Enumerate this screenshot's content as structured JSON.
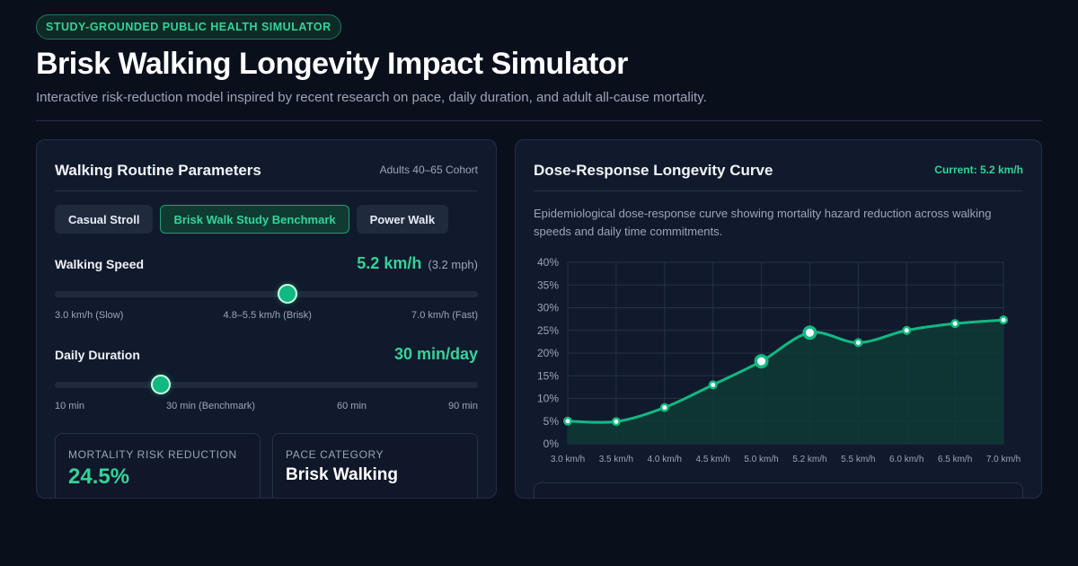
{
  "header": {
    "badge": "STUDY-GROUNDED PUBLIC HEALTH SIMULATOR",
    "title": "Brisk Walking Longevity Impact Simulator",
    "subtitle": "Interactive risk-reduction model inspired by recent research on pace, daily duration, and adult all-cause mortality."
  },
  "params_panel": {
    "title": "Walking Routine Parameters",
    "cohort": "Adults 40–65 Cohort",
    "presets": [
      {
        "label": "Casual Stroll",
        "active": false
      },
      {
        "label": "Brisk Walk Study Benchmark",
        "active": true
      },
      {
        "label": "Power Walk",
        "active": false
      }
    ],
    "speed": {
      "label": "Walking Speed",
      "value": "5.2 km/h",
      "value_sub": "(3.2 mph)",
      "min": 3.0,
      "max": 7.0,
      "current": 5.2,
      "ticks": [
        "3.0 km/h (Slow)",
        "4.8–5.5 km/h (Brisk)",
        "7.0 km/h (Fast)"
      ]
    },
    "duration": {
      "label": "Daily Duration",
      "value": "30 min/day",
      "min": 0,
      "max": 120,
      "current": 30,
      "ticks": [
        "10 min",
        "30 min (Benchmark)",
        "60 min",
        "90 min"
      ]
    },
    "stats": [
      {
        "caption": "MORTALITY RISK REDUCTION",
        "value": "24.5%"
      },
      {
        "caption": "PACE CATEGORY",
        "value": "Brisk Walking"
      }
    ]
  },
  "curve_panel": {
    "title": "Dose-Response Longevity Curve",
    "current": "Current: 5.2 km/h",
    "description": "Epidemiological dose-response curve showing mortality hazard reduction across walking speeds and daily time commitments."
  },
  "chart_data": {
    "type": "line",
    "x": [
      "3.0 km/h",
      "3.5 km/h",
      "4.0 km/h",
      "4.5 km/h",
      "5.0 km/h",
      "5.2 km/h",
      "5.5 km/h",
      "6.0 km/h",
      "6.5 km/h",
      "7.0 km/h"
    ],
    "series": [
      {
        "values": [
          5.0,
          4.9,
          8.0,
          13.0,
          18.2,
          24.5,
          22.3,
          25.0,
          26.5,
          27.3
        ],
        "highlight": [
          false,
          false,
          false,
          false,
          true,
          true,
          false,
          false,
          false,
          false
        ]
      }
    ],
    "ylim": [
      0,
      40
    ],
    "yticks": [
      "0%",
      "5%",
      "10%",
      "15%",
      "20%",
      "25%",
      "30%",
      "35%",
      "40%"
    ],
    "grid": true,
    "colors": {
      "line": "#10b981",
      "fill": "#0f3a36",
      "grid": "#243049",
      "point_fill": "#ffffff"
    }
  }
}
